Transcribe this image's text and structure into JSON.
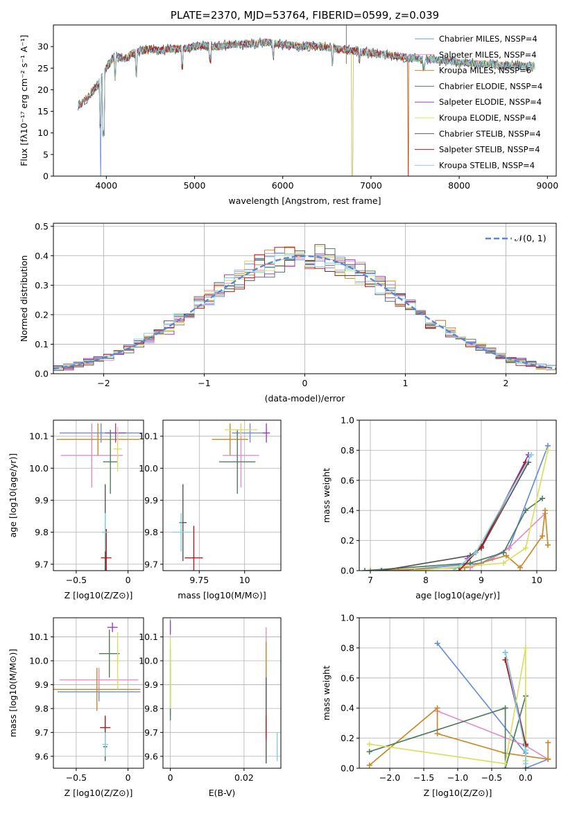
{
  "chart_data": [
    {
      "id": "spectrum",
      "type": "line",
      "title": "PLATE=2370, MJD=53764, FIBERID=0599, z=0.039",
      "xlabel": "wavelength [Angstrom, rest frame]",
      "ylabel": "Flux [fλ10⁻¹⁷ erg cm⁻² s⁻¹ A⁻¹]",
      "xlim": [
        3400,
        9100
      ],
      "ylim": [
        0,
        35
      ],
      "xticks": [
        4000,
        5000,
        6000,
        7000,
        8000,
        9000
      ],
      "yticks": [
        0,
        5,
        10,
        15,
        20,
        25,
        30
      ],
      "legend_position": "top-right",
      "series": [
        {
          "name": "Chabrier MILES, NSSP=4",
          "color": "#6a8fd8"
        },
        {
          "name": "Salpeter MILES, NSSP=4",
          "color": "#e58cc6"
        },
        {
          "name": "Kroupa MILES, NSSP=6",
          "color": "#c88a2a"
        },
        {
          "name": "Chabrier ELODIE, NSSP=4",
          "color": "#4f7d62"
        },
        {
          "name": "Salpeter ELODIE, NSSP=4",
          "color": "#9b3fbf"
        },
        {
          "name": "Kroupa ELODIE, NSSP=4",
          "color": "#d8e060"
        },
        {
          "name": "Chabrier STELIB, NSSP=4",
          "color": "#555555"
        },
        {
          "name": "Salpeter STELIB, NSSP=4",
          "color": "#b01818"
        },
        {
          "name": "Kroupa STELIB, NSSP=4",
          "color": "#80d4e0"
        }
      ],
      "x": [
        3700,
        3800,
        3900,
        4000,
        4100,
        4200,
        4300,
        4400,
        4500,
        4600,
        4700,
        4800,
        4900,
        5000,
        5100,
        5200,
        5300,
        5400,
        5500,
        5600,
        5700,
        5800,
        5900,
        6000,
        6100,
        6200,
        6300,
        6400,
        6500,
        6600,
        6700,
        6800,
        6900,
        7000,
        7100,
        7200,
        7300,
        7400,
        7500,
        7600,
        7700,
        7800,
        7900,
        8000,
        8100,
        8200,
        8300,
        8400,
        8500,
        8600,
        8700,
        8800
      ],
      "y": [
        16.5,
        18.5,
        21,
        25,
        28,
        27,
        28.5,
        29,
        29.5,
        29,
        29.5,
        29.5,
        29.5,
        30,
        30.3,
        30,
        30,
        30.5,
        30.5,
        30.5,
        30.8,
        31,
        30.7,
        30.5,
        30.3,
        30,
        30.2,
        30,
        29.8,
        29.5,
        29.3,
        29,
        28.8,
        28.5,
        28.3,
        28,
        27.8,
        27.5,
        27.3,
        27,
        27,
        26.8,
        26.5,
        26.3,
        26.2,
        26,
        26,
        25.8,
        25.6,
        25.5,
        25.5,
        25.5
      ]
    },
    {
      "id": "residuals",
      "type": "bar",
      "xlabel": "(data-model)/error",
      "ylabel": "Normed distribution",
      "xlim": [
        -2.5,
        2.5
      ],
      "ylim": [
        0,
        0.51
      ],
      "xticks": [
        -2,
        -1,
        0,
        1,
        2
      ],
      "yticks": [
        0.0,
        0.1,
        0.2,
        0.3,
        0.4,
        0.5
      ],
      "legend": "𝒩(0, 1)",
      "legend_position": "top-right",
      "bin_width": 0.1
    },
    {
      "id": "age-vs-Z",
      "type": "scatter",
      "xlabel": "Z [log10(Z/Z⊙)]",
      "ylabel": "age  [log10(age/yr)]",
      "xlim": [
        -0.72,
        0.15
      ],
      "ylim": [
        9.68,
        10.15
      ],
      "xticks": [
        -0.5,
        0.0
      ],
      "yticks": [
        9.7,
        9.8,
        9.9,
        10.0,
        10.1
      ],
      "points": [
        {
          "series": 0,
          "x": -0.26,
          "y": 10.11,
          "xerr": 0.4,
          "yerr": 0.03
        },
        {
          "series": 1,
          "x": -0.35,
          "y": 10.04,
          "xerr": 0.3,
          "yerr": 0.1
        },
        {
          "series": 2,
          "x": -0.29,
          "y": 10.09,
          "xerr": 0.4,
          "yerr": 0.05
        },
        {
          "series": 3,
          "x": -0.17,
          "y": 10.02,
          "xerr": 0.07,
          "yerr": 0.1
        },
        {
          "series": 4,
          "x": -0.12,
          "y": 10.11,
          "xerr": 0.1,
          "yerr": 0.03
        },
        {
          "series": 5,
          "x": -0.1,
          "y": 10.06,
          "xerr": 0.04,
          "yerr": 0.07
        },
        {
          "series": 6,
          "x": -0.22,
          "y": 9.8,
          "xerr": 0.03,
          "yerr": 0.15
        },
        {
          "series": 7,
          "x": -0.21,
          "y": 9.72,
          "xerr": 0.05,
          "yerr": 0.09
        },
        {
          "series": 8,
          "x": -0.22,
          "y": 9.8,
          "xerr": 0.03,
          "yerr": 0.06
        }
      ]
    },
    {
      "id": "age-vs-mass",
      "type": "scatter",
      "xlabel": "mass [log10(M/M⊙)]",
      "xlim": [
        9.55,
        10.2
      ],
      "ylim": [
        9.68,
        10.15
      ],
      "xticks": [
        9.75,
        10.0
      ],
      "yticks": [
        9.7,
        9.8,
        9.9,
        10.0,
        10.1
      ],
      "points": [
        {
          "series": 0,
          "x": 10.03,
          "y": 10.11,
          "xerr": 0.1,
          "yerr": 0.03
        },
        {
          "series": 1,
          "x": 9.98,
          "y": 10.04,
          "xerr": 0.1,
          "yerr": 0.1
        },
        {
          "series": 2,
          "x": 9.92,
          "y": 10.09,
          "xerr": 0.1,
          "yerr": 0.05
        },
        {
          "series": 3,
          "x": 9.96,
          "y": 10.02,
          "xerr": 0.1,
          "yerr": 0.1
        },
        {
          "series": 4,
          "x": 10.12,
          "y": 10.11,
          "xerr": 0.02,
          "yerr": 0.03
        },
        {
          "series": 5,
          "x": 9.98,
          "y": 10.12,
          "xerr": 0.09,
          "yerr": 0.02
        },
        {
          "series": 6,
          "x": 9.66,
          "y": 9.83,
          "xerr": 0.02,
          "yerr": 0.12
        },
        {
          "series": 7,
          "x": 9.72,
          "y": 9.72,
          "xerr": 0.05,
          "yerr": 0.1
        },
        {
          "series": 8,
          "x": 9.65,
          "y": 9.8,
          "xerr": 0.05,
          "yerr": 0.06
        }
      ]
    },
    {
      "id": "massweight-vs-age",
      "type": "line",
      "xlabel": "age  [log10(age/yr)]",
      "ylabel": "mass weight",
      "xlim": [
        6.8,
        10.35
      ],
      "ylim": [
        0,
        1
      ],
      "xticks": [
        7,
        8,
        9,
        10
      ],
      "yticks": [
        0.0,
        0.2,
        0.4,
        0.6,
        0.8,
        1.0
      ],
      "series": [
        {
          "series": 0,
          "x": [
            7.5,
            9.0,
            9.5,
            10.2
          ],
          "y": [
            0.0,
            0.05,
            0.15,
            0.83
          ]
        },
        {
          "series": 1,
          "x": [
            8.8,
            9.2,
            9.5,
            10.15
          ],
          "y": [
            0.02,
            0.08,
            0.15,
            0.38
          ]
        },
        {
          "series": 2,
          "x": [
            7.0,
            8.7,
            9.45,
            9.7,
            10.1,
            10.15,
            10.2
          ],
          "y": [
            0.0,
            0.02,
            0.1,
            0.02,
            0.23,
            0.4,
            0.17
          ]
        },
        {
          "series": 3,
          "x": [
            6.9,
            8.8,
            9.4,
            9.8,
            10.1
          ],
          "y": [
            0.0,
            0.05,
            0.12,
            0.4,
            0.48
          ]
        },
        {
          "series": 4,
          "x": [
            8.75,
            9.0,
            9.85
          ],
          "y": [
            0.08,
            0.16,
            0.77
          ]
        },
        {
          "series": 5,
          "x": [
            7.8,
            9.4,
            9.8,
            10.2
          ],
          "y": [
            0.0,
            0.05,
            0.15,
            0.8
          ]
        },
        {
          "series": 6,
          "x": [
            7.2,
            8.8,
            9.0,
            9.85
          ],
          "y": [
            0.0,
            0.1,
            0.15,
            0.72
          ]
        },
        {
          "series": 7,
          "x": [
            8.6,
            8.9,
            9.0,
            9.8
          ],
          "y": [
            0.0,
            0.12,
            0.16,
            0.72
          ]
        },
        {
          "series": 8,
          "x": [
            8.5,
            8.9,
            9.9
          ],
          "y": [
            0.0,
            0.12,
            0.77
          ]
        }
      ]
    },
    {
      "id": "mass-vs-Z",
      "type": "scatter",
      "xlabel": "Z [log10(Z/Z⊙)]",
      "ylabel": "mass [log10(M/M⊙)]",
      "xlim": [
        -0.72,
        0.15
      ],
      "ylim": [
        9.55,
        10.18
      ],
      "xticks": [
        -0.5,
        0.0
      ],
      "yticks": [
        9.6,
        9.7,
        9.8,
        9.9,
        10.0,
        10.1
      ],
      "points": [
        {
          "series": 0,
          "x": -0.28,
          "y": 9.87,
          "xerr": 0.4,
          "yerr": 0.04
        },
        {
          "series": 1,
          "x": -0.28,
          "y": 9.92,
          "xerr": 0.38,
          "yerr": 0.05
        },
        {
          "series": 2,
          "x": -0.3,
          "y": 9.88,
          "xerr": 0.42,
          "yerr": 0.09
        },
        {
          "series": 3,
          "x": -0.18,
          "y": 10.03,
          "xerr": 0.1,
          "yerr": 0.1
        },
        {
          "series": 4,
          "x": -0.15,
          "y": 10.14,
          "xerr": 0.05,
          "yerr": 0.02
        },
        {
          "series": 5,
          "x": -0.1,
          "y": 10.0,
          "xerr": 0.03,
          "yerr": 0.12
        },
        {
          "series": 6,
          "x": -0.22,
          "y": 9.64,
          "xerr": 0.02,
          "yerr": 0.06
        },
        {
          "series": 7,
          "x": -0.22,
          "y": 9.72,
          "xerr": 0.05,
          "yerr": 0.05
        },
        {
          "series": 8,
          "x": -0.22,
          "y": 9.65,
          "xerr": 0.03,
          "yerr": 0.05
        }
      ]
    },
    {
      "id": "mass-vs-EBV",
      "type": "scatter",
      "xlabel": "E(B-V)",
      "xlim": [
        -0.002,
        0.03
      ],
      "ylim": [
        9.55,
        10.18
      ],
      "xticks": [
        0.0,
        0.02
      ],
      "yticks": [
        9.6,
        9.7,
        9.8,
        9.9,
        10.0,
        10.1
      ],
      "points": [
        {
          "series": 0,
          "x": 0.0,
          "y": 9.87,
          "xerr": 0,
          "yerr": 0.1
        },
        {
          "series": 1,
          "x": 0.026,
          "y": 9.92,
          "xerr": 0,
          "yerr": 0.22
        },
        {
          "series": 2,
          "x": 0.026,
          "y": 9.88,
          "xerr": 0,
          "yerr": 0.2
        },
        {
          "series": 3,
          "x": 0.0,
          "y": 9.9,
          "xerr": 0,
          "yerr": 0.15
        },
        {
          "series": 4,
          "x": 0.0,
          "y": 10.14,
          "xerr": 0,
          "yerr": 0.03
        },
        {
          "series": 5,
          "x": 0.0,
          "y": 9.95,
          "xerr": 0,
          "yerr": 0.15
        },
        {
          "series": 6,
          "x": 0.026,
          "y": 9.75,
          "xerr": 0,
          "yerr": 0.18
        },
        {
          "series": 7,
          "x": 0.026,
          "y": 9.72,
          "xerr": 0,
          "yerr": 0.05
        },
        {
          "series": 8,
          "x": 0.029,
          "y": 9.64,
          "xerr": 0,
          "yerr": 0.06
        }
      ]
    },
    {
      "id": "massweight-vs-Z",
      "type": "line",
      "xlabel": "Z [log10(Z/Z⊙)]",
      "ylabel": "mass weight",
      "xlim": [
        -2.45,
        0.45
      ],
      "ylim": [
        0,
        1
      ],
      "xticks": [
        -2.0,
        -1.5,
        -1.0,
        -0.5,
        0.0
      ],
      "yticks": [
        0.0,
        0.2,
        0.4,
        0.6,
        0.8,
        1.0
      ],
      "series": [
        {
          "series": 0,
          "x": [
            -1.3,
            0.0,
            0.0,
            0.33
          ],
          "y": [
            0.83,
            0.1,
            0.0,
            0.06
          ]
        },
        {
          "series": 1,
          "x": [
            -1.3,
            0.0,
            0.33
          ],
          "y": [
            0.38,
            0.15,
            0.06
          ]
        },
        {
          "series": 2,
          "x": [
            -2.3,
            -1.3,
            -1.3,
            -0.3,
            0.33,
            0.33
          ],
          "y": [
            0.02,
            0.4,
            0.23,
            0.1,
            0.06,
            0.17
          ]
        },
        {
          "series": 3,
          "x": [
            -2.3,
            -0.3,
            -0.3,
            0.0,
            0.0
          ],
          "y": [
            0.11,
            0.4,
            0.0,
            0.48,
            0.0
          ]
        },
        {
          "series": 4,
          "x": [
            -0.3,
            0.0
          ],
          "y": [
            0.77,
            0.16
          ]
        },
        {
          "series": 5,
          "x": [
            -2.3,
            -0.3,
            0.0,
            0.0
          ],
          "y": [
            0.16,
            0.03,
            0.8,
            0.05
          ]
        },
        {
          "series": 6,
          "x": [
            -0.3,
            0.0
          ],
          "y": [
            0.72,
            0.15
          ]
        },
        {
          "series": 7,
          "x": [
            -0.3,
            0.0
          ],
          "y": [
            0.72,
            0.16
          ]
        },
        {
          "series": 8,
          "x": [
            -0.3,
            0.0,
            0.0
          ],
          "y": [
            0.77,
            0.12,
            0.03
          ]
        }
      ]
    }
  ]
}
